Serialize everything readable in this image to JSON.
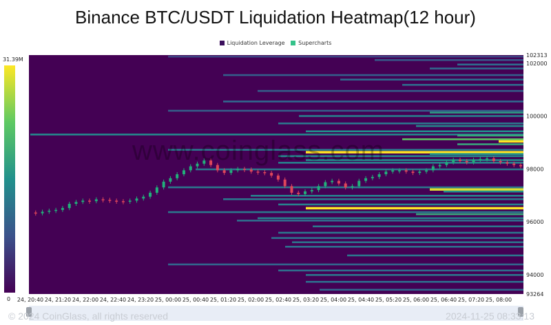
{
  "chart_data": {
    "type": "heatmap",
    "title": "Binance BTC/USDT Liquidation Heatmap(12 hour)",
    "legend": [
      {
        "name": "Liquidation Leverage",
        "color": "#3b0f5c"
      },
      {
        "name": "Supercharts",
        "color": "#35c28a"
      }
    ],
    "x_ticks": [
      "24, 20:40",
      "24, 21:20",
      "24, 22:00",
      "24, 22:40",
      "24, 23:20",
      "25, 00:00",
      "25, 00:40",
      "25, 01:20",
      "25, 02:00",
      "25, 02:40",
      "25, 03:20",
      "25, 04:00",
      "25, 04:40",
      "25, 05:20",
      "25, 06:00",
      "25, 06:40",
      "25, 07:20",
      "25, 08:00"
    ],
    "y_ticks": [
      102313,
      102000,
      100000,
      98000,
      96000,
      94000,
      93264
    ],
    "ylim": [
      93264,
      102313
    ],
    "colorbar": {
      "max_label": "31.39M",
      "min_label": "0"
    },
    "bands": [
      {
        "price": 102250,
        "start": "25, 00:00",
        "intensity": 0.12
      },
      {
        "price": 102120,
        "start": "25, 05:00",
        "intensity": 0.2
      },
      {
        "price": 101950,
        "start": "25, 07:00",
        "intensity": 0.3
      },
      {
        "price": 101800,
        "start": "25, 06:20",
        "intensity": 0.25
      },
      {
        "price": 101550,
        "start": "25, 01:20",
        "intensity": 0.22
      },
      {
        "price": 101380,
        "start": "25, 04:10",
        "intensity": 0.28
      },
      {
        "price": 101180,
        "start": "25, 05:40",
        "intensity": 0.3
      },
      {
        "price": 100950,
        "start": "25, 02:10",
        "intensity": 0.22
      },
      {
        "price": 100550,
        "start": "25, 01:20",
        "intensity": 0.25
      },
      {
        "price": 100200,
        "start": "25, 00:00",
        "intensity": 0.22
      },
      {
        "price": 100130,
        "start": "25, 06:20",
        "intensity": 0.55
      },
      {
        "price": 100000,
        "start": "25, 03:10",
        "intensity": 0.4
      },
      {
        "price": 99720,
        "start": "25, 02:40",
        "intensity": 0.35
      },
      {
        "price": 99620,
        "start": "25, 06:00",
        "intensity": 0.45
      },
      {
        "price": 99420,
        "start": "25, 03:20",
        "intensity": 0.5
      },
      {
        "price": 99300,
        "start": "24, 20:40",
        "intensity": 0.45
      },
      {
        "price": 99260,
        "start": "25, 07:00",
        "intensity": 0.6
      },
      {
        "price": 99120,
        "start": "25, 05:40",
        "intensity": 0.75
      },
      {
        "price": 99050,
        "start": "25, 08:00",
        "intensity": 1.0
      },
      {
        "price": 98930,
        "start": "25, 07:00",
        "intensity": 0.6
      },
      {
        "price": 98720,
        "start": "25, 00:00",
        "intensity": 0.35
      },
      {
        "price": 98640,
        "start": "25, 03:20",
        "intensity": 1.0
      },
      {
        "price": 98560,
        "start": "25, 06:20",
        "intensity": 0.5
      },
      {
        "price": 98480,
        "start": "25, 02:40",
        "intensity": 0.45
      },
      {
        "price": 98330,
        "start": "25, 03:20",
        "intensity": 0.45
      },
      {
        "price": 98230,
        "start": "25, 02:40",
        "intensity": 0.4
      },
      {
        "price": 97980,
        "start": "25, 00:40",
        "intensity": 0.35
      },
      {
        "price": 97300,
        "start": "25, 00:00",
        "intensity": 0.35
      },
      {
        "price": 97230,
        "start": "25, 06:20",
        "intensity": 0.95
      },
      {
        "price": 97140,
        "start": "25, 06:40",
        "intensity": 0.5
      },
      {
        "price": 96980,
        "start": "25, 02:00",
        "intensity": 0.4
      },
      {
        "price": 96850,
        "start": "25, 01:20",
        "intensity": 0.35
      },
      {
        "price": 96650,
        "start": "25, 02:40",
        "intensity": 0.4
      },
      {
        "price": 96520,
        "start": "25, 03:20",
        "intensity": 1.0
      },
      {
        "price": 96360,
        "start": "25, 00:00",
        "intensity": 0.35
      },
      {
        "price": 96280,
        "start": "25, 06:00",
        "intensity": 0.6
      },
      {
        "price": 96130,
        "start": "25, 02:10",
        "intensity": 0.4
      },
      {
        "price": 96040,
        "start": "25, 01:40",
        "intensity": 0.3
      },
      {
        "price": 95820,
        "start": "25, 03:30",
        "intensity": 0.35
      },
      {
        "price": 95580,
        "start": "25, 02:40",
        "intensity": 0.35
      },
      {
        "price": 95380,
        "start": "25, 02:30",
        "intensity": 0.3
      },
      {
        "price": 95220,
        "start": "25, 03:00",
        "intensity": 0.35
      },
      {
        "price": 95050,
        "start": "25, 02:50",
        "intensity": 0.3
      },
      {
        "price": 94720,
        "start": "25, 04:20",
        "intensity": 0.35
      },
      {
        "price": 94380,
        "start": "25, 00:00",
        "intensity": 0.25
      },
      {
        "price": 94150,
        "start": "25, 02:40",
        "intensity": 0.3
      },
      {
        "price": 93980,
        "start": "25, 03:20",
        "intensity": 0.35
      },
      {
        "price": 93720,
        "start": "25, 03:20",
        "intensity": 0.3
      },
      {
        "price": 93420,
        "start": "25, 03:40",
        "intensity": 0.25
      }
    ],
    "price_series": [
      96350,
      96320,
      96380,
      96420,
      96450,
      96520,
      96680,
      96750,
      96800,
      96780,
      96850,
      96830,
      96800,
      96780,
      96760,
      96800,
      96880,
      96950,
      97100,
      97300,
      97520,
      97650,
      97800,
      97950,
      98100,
      98200,
      98320,
      98150,
      97950,
      97850,
      97950,
      98000,
      97980,
      97900,
      97880,
      97850,
      97750,
      97600,
      97350,
      97100,
      97050,
      97150,
      97200,
      97350,
      97500,
      97550,
      97450,
      97300,
      97350,
      97550,
      97650,
      97700,
      97800,
      97900,
      97950,
      97950,
      97900,
      97850,
      97900,
      97950,
      98100,
      98150,
      98250,
      98350,
      98300,
      98250,
      98350,
      98380,
      98400,
      98300,
      98250,
      98200,
      98150,
      98100
    ]
  },
  "watermark": "www.coinglass.com",
  "footer": {
    "left": "© 2024 CoinGlass, all rights reserved",
    "right": "2024-11-25 08:33:13"
  }
}
